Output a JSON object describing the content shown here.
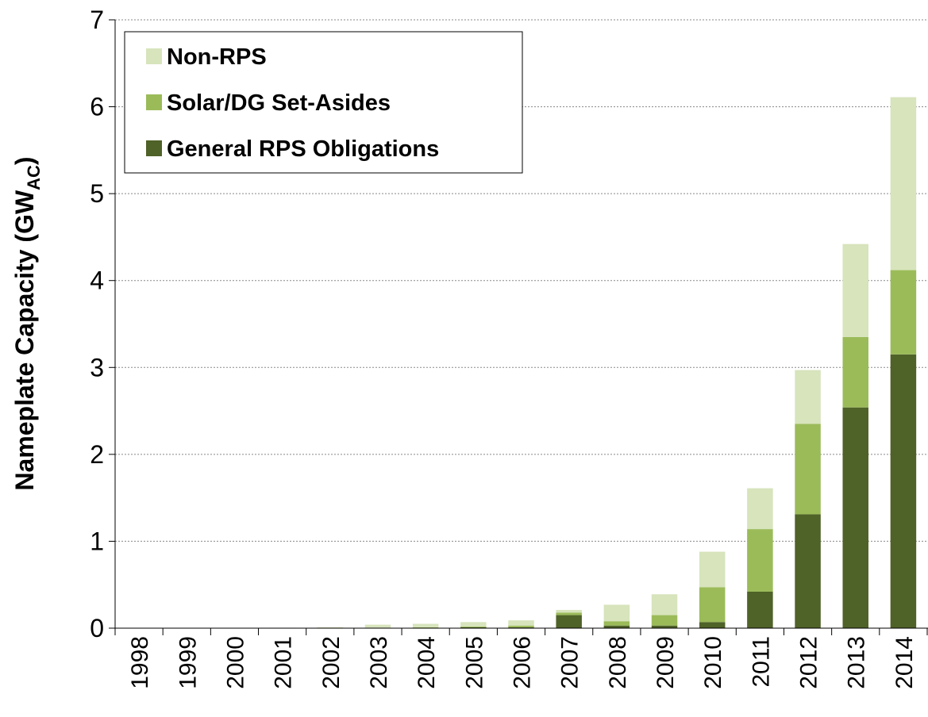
{
  "chart_data": {
    "type": "stacked_bar",
    "y_label": "Nameplate Capacity (GW",
    "y_label_sub": "AC",
    "y_label_end": ")",
    "categories": [
      "1998",
      "1999",
      "2000",
      "2001",
      "2002",
      "2003",
      "2004",
      "2005",
      "2006",
      "2007",
      "2008",
      "2009",
      "2010",
      "2011",
      "2012",
      "2013",
      "2014"
    ],
    "series": [
      {
        "name": "General RPS Obligations",
        "color": "#4f6228",
        "values": [
          0,
          0,
          0,
          0,
          0,
          0.005,
          0.005,
          0.01,
          0.01,
          0.15,
          0.03,
          0.03,
          0.07,
          0.42,
          1.31,
          2.54,
          3.15
        ]
      },
      {
        "name": "Solar/DG Set-Asides",
        "color": "#9bbb59",
        "values": [
          0,
          0,
          0,
          0,
          0,
          0,
          0.005,
          0.01,
          0.02,
          0.03,
          0.05,
          0.12,
          0.4,
          0.72,
          1.04,
          0.81,
          0.97
        ]
      },
      {
        "name": "Non-RPS",
        "color": "#d7e4bc",
        "values": [
          0,
          0,
          0,
          0.005,
          0.01,
          0.035,
          0.04,
          0.05,
          0.06,
          0.03,
          0.19,
          0.24,
          0.41,
          0.47,
          0.62,
          1.07,
          1.99
        ]
      }
    ],
    "ylim": [
      0,
      7
    ],
    "yticks": [
      0,
      1,
      2,
      3,
      4,
      5,
      6,
      7
    ],
    "grid": true
  }
}
